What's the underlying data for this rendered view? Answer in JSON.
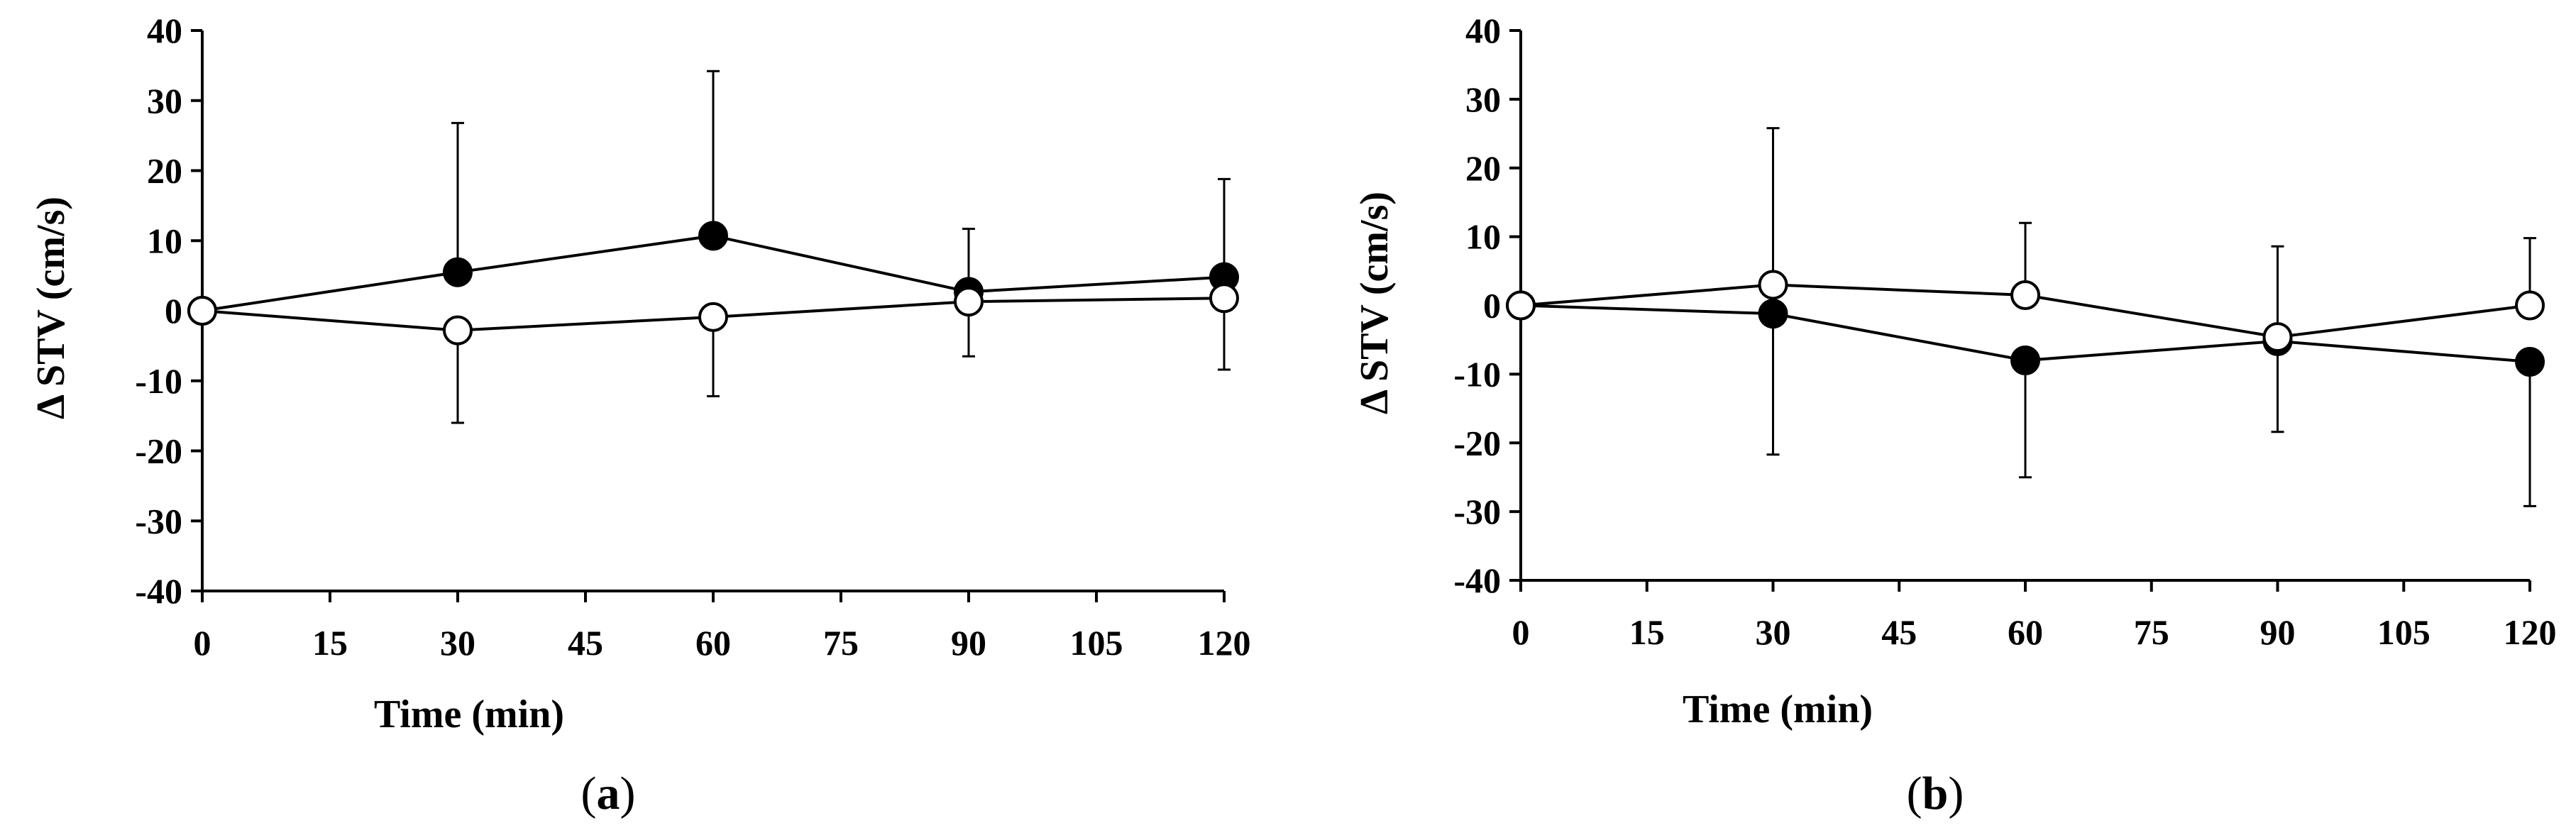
{
  "chart_data": [
    {
      "type": "line",
      "panel_label": "a",
      "xlabel": "Time (min)",
      "ylabel": "Δ STV (cm/s)",
      "xlim": [
        0,
        120
      ],
      "ylim": [
        -40,
        40
      ],
      "xticks": [
        0,
        15,
        30,
        45,
        60,
        75,
        90,
        105,
        120
      ],
      "yticks": [
        40,
        30,
        20,
        10,
        0,
        -10,
        -20,
        -30,
        -40
      ],
      "grid": false,
      "legend": "none",
      "series": [
        {
          "marker": "filled",
          "color": "#000000",
          "x": [
            0,
            30,
            60,
            90,
            120
          ],
          "y": [
            0,
            5.5,
            10.7,
            2.7,
            4.8
          ],
          "err_plus": [
            0,
            21.3,
            23.5,
            9,
            14
          ],
          "err_minus": [
            0,
            0,
            0,
            0,
            0
          ]
        },
        {
          "marker": "open",
          "color": "#000000",
          "x": [
            0,
            30,
            60,
            90,
            120
          ],
          "y": [
            0,
            -2.8,
            -0.9,
            1.3,
            1.8
          ],
          "err_plus": [
            0,
            0,
            0,
            0,
            0
          ],
          "err_minus": [
            0,
            13.2,
            11.3,
            7.8,
            10.2
          ]
        }
      ]
    },
    {
      "type": "line",
      "panel_label": "b",
      "xlabel": "Time (min)",
      "ylabel": "Δ STV (cm/s)",
      "xlim": [
        0,
        120
      ],
      "ylim": [
        -40,
        40
      ],
      "xticks": [
        0,
        15,
        30,
        45,
        60,
        75,
        90,
        105,
        120
      ],
      "yticks": [
        40,
        30,
        20,
        10,
        0,
        -10,
        -20,
        -30,
        -40
      ],
      "grid": false,
      "legend": "none",
      "series": [
        {
          "marker": "filled",
          "color": "#000000",
          "x": [
            0,
            30,
            60,
            90,
            120
          ],
          "y": [
            0,
            -1.2,
            -8,
            -5.2,
            -8.2
          ],
          "err_plus": [
            0,
            0,
            0,
            0,
            0
          ],
          "err_minus": [
            0,
            20.5,
            17,
            13.2,
            21
          ]
        },
        {
          "marker": "open",
          "color": "#000000",
          "x": [
            0,
            30,
            60,
            90,
            120
          ],
          "y": [
            0,
            3,
            1.5,
            -4.6,
            0
          ],
          "err_plus": [
            0,
            22.8,
            10.5,
            13.2,
            9.8
          ],
          "err_minus": [
            0,
            0,
            0,
            0,
            0
          ]
        }
      ]
    }
  ]
}
